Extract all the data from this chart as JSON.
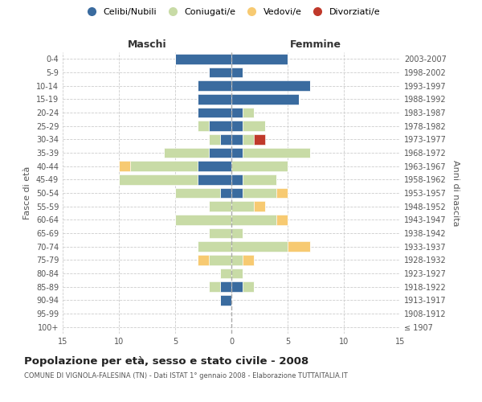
{
  "age_groups": [
    "100+",
    "95-99",
    "90-94",
    "85-89",
    "80-84",
    "75-79",
    "70-74",
    "65-69",
    "60-64",
    "55-59",
    "50-54",
    "45-49",
    "40-44",
    "35-39",
    "30-34",
    "25-29",
    "20-24",
    "15-19",
    "10-14",
    "5-9",
    "0-4"
  ],
  "birth_years": [
    "≤ 1907",
    "1908-1912",
    "1913-1917",
    "1918-1922",
    "1923-1927",
    "1928-1932",
    "1933-1937",
    "1938-1942",
    "1943-1947",
    "1948-1952",
    "1953-1957",
    "1958-1962",
    "1963-1967",
    "1968-1972",
    "1973-1977",
    "1978-1982",
    "1983-1987",
    "1988-1992",
    "1993-1997",
    "1998-2002",
    "2003-2007"
  ],
  "maschi_celibi": [
    0,
    0,
    1,
    1,
    0,
    0,
    0,
    0,
    0,
    0,
    1,
    3,
    3,
    2,
    1,
    2,
    3,
    3,
    3,
    2,
    5
  ],
  "maschi_coniugati": [
    0,
    0,
    0,
    1,
    1,
    2,
    3,
    2,
    5,
    2,
    4,
    7,
    6,
    4,
    1,
    1,
    0,
    0,
    0,
    0,
    0
  ],
  "maschi_vedovi": [
    0,
    0,
    0,
    0,
    0,
    1,
    0,
    0,
    0,
    0,
    0,
    0,
    1,
    0,
    0,
    0,
    0,
    0,
    0,
    0,
    0
  ],
  "maschi_divorziati": [
    0,
    0,
    0,
    0,
    0,
    0,
    0,
    0,
    0,
    0,
    0,
    0,
    0,
    0,
    0,
    0,
    0,
    0,
    0,
    0,
    0
  ],
  "femmine_nubili": [
    0,
    0,
    0,
    1,
    0,
    0,
    0,
    0,
    0,
    0,
    1,
    1,
    0,
    1,
    1,
    1,
    1,
    6,
    7,
    1,
    5
  ],
  "femmine_coniugate": [
    0,
    0,
    0,
    1,
    1,
    1,
    5,
    1,
    4,
    2,
    3,
    3,
    5,
    6,
    1,
    2,
    1,
    0,
    0,
    0,
    0
  ],
  "femmine_vedove": [
    0,
    0,
    0,
    0,
    0,
    1,
    2,
    0,
    1,
    1,
    1,
    0,
    0,
    0,
    0,
    0,
    0,
    0,
    0,
    0,
    0
  ],
  "femmine_divorziate": [
    0,
    0,
    0,
    0,
    0,
    0,
    0,
    0,
    0,
    0,
    0,
    0,
    0,
    0,
    1,
    0,
    0,
    0,
    0,
    0,
    0
  ],
  "color_celibi": "#3a6b9f",
  "color_coniugati": "#c8dba6",
  "color_vedovi": "#f7ca72",
  "color_divorziati": "#c0392b",
  "xlim": 15,
  "xticks": [
    -15,
    -10,
    -5,
    0,
    5,
    10,
    15
  ],
  "title": "Popolazione per età, sesso e stato civile - 2008",
  "subtitle": "COMUNE DI VIGNOLA-FALESINA (TN) - Dati ISTAT 1° gennaio 2008 - Elaborazione TUTTAITALIA.IT",
  "ylabel_left": "Fasce di età",
  "ylabel_right": "Anni di nascita",
  "legend_labels": [
    "Celibi/Nubili",
    "Coniugati/e",
    "Vedovi/e",
    "Divorziati/e"
  ],
  "label_maschi": "Maschi",
  "label_femmine": "Femmine",
  "bg_color": "#ffffff",
  "grid_color": "#cccccc",
  "text_color": "#555555",
  "bar_height": 0.75
}
